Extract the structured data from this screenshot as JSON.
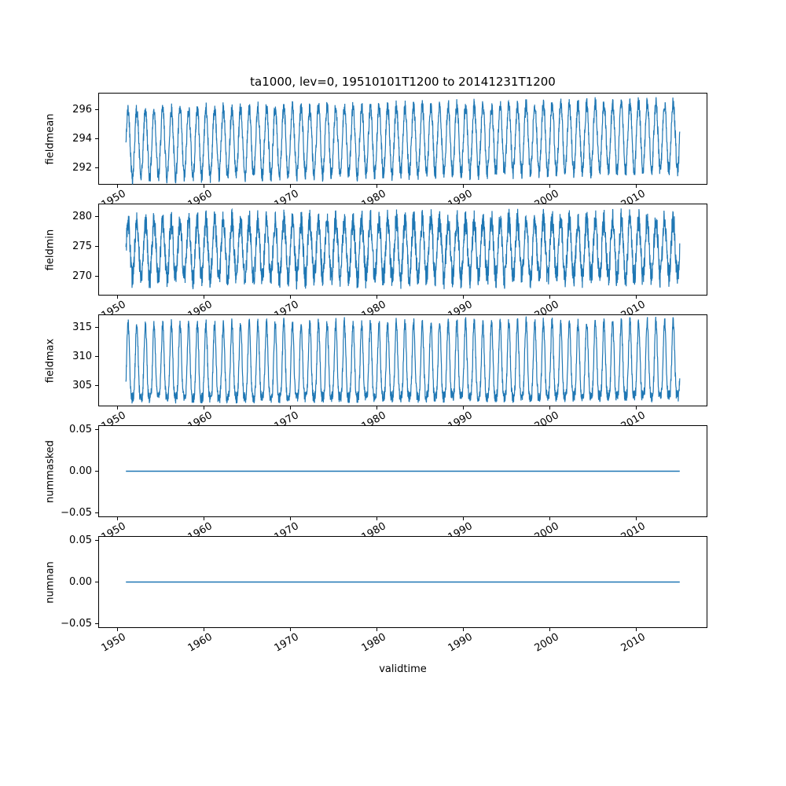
{
  "chart_data": {
    "type": "line",
    "title": "ta1000, lev=0, 19510101T1200 to 20141231T1200",
    "xlabel": "validtime",
    "line_color": "#1f77b4",
    "legend": "none",
    "grid": false,
    "x": {
      "label": "validtime",
      "range": [
        1947.8,
        2018.2
      ],
      "data_start": 1951.0,
      "data_end": 2015.0,
      "ticks": [
        1950,
        1960,
        1970,
        1980,
        1990,
        2000,
        2010
      ],
      "tick_labels": [
        "1950",
        "1960",
        "1970",
        "1980",
        "1990",
        "2000",
        "2010"
      ],
      "tick_rotation_deg": 30
    },
    "subplots": [
      {
        "ylabel": "fieldmean",
        "ylim": [
          290.85,
          297.15
        ],
        "ytick_values": [
          292,
          294,
          296
        ],
        "ytick_labels": [
          "292",
          "294",
          "296"
        ],
        "series": {
          "name": "fieldmean",
          "kind": "seasonal",
          "period_years": 1,
          "mean": 293.9,
          "amplitude": 2.3,
          "noise": 0.5,
          "trend_per_year": 0.008,
          "approx_min": 291.1,
          "approx_max": 296.8
        }
      },
      {
        "ylabel": "fieldmin",
        "ylim": [
          266.7,
          282.2
        ],
        "ytick_values": [
          270,
          275,
          280
        ],
        "ytick_labels": [
          "270",
          "275",
          "280"
        ],
        "series": {
          "name": "fieldmin",
          "kind": "seasonal",
          "period_years": 1,
          "mean": 274.5,
          "amplitude": 4.8,
          "noise": 2.0,
          "trend_per_year": 0.005,
          "approx_min": 267.0,
          "approx_max": 281.4
        }
      },
      {
        "ylabel": "fieldmax",
        "ylim": [
          301.4,
          317.2
        ],
        "ytick_values": [
          305,
          310,
          315
        ],
        "ytick_labels": [
          "305",
          "310",
          "315"
        ],
        "series": {
          "name": "fieldmax",
          "kind": "seasonal-peaked",
          "period_years": 1,
          "low": 303.0,
          "high": 315.8,
          "shape_power": 2.0,
          "noise": 1.0,
          "trend_per_year": 0.006,
          "approx_min": 302.0,
          "approx_max": 316.4
        }
      },
      {
        "ylabel": "nummasked",
        "ylim": [
          -0.055,
          0.055
        ],
        "ytick_values": [
          -0.05,
          0,
          0.05
        ],
        "ytick_labels": [
          "−0.05",
          "0.00",
          "0.05"
        ],
        "series": {
          "name": "nummasked",
          "kind": "constant",
          "value": 0
        }
      },
      {
        "ylabel": "numnan",
        "ylim": [
          -0.055,
          0.055
        ],
        "ytick_values": [
          -0.05,
          0,
          0.05
        ],
        "ytick_labels": [
          "−0.05",
          "0.00",
          "0.05"
        ],
        "series": {
          "name": "numnan",
          "kind": "constant",
          "value": 0
        }
      }
    ]
  }
}
